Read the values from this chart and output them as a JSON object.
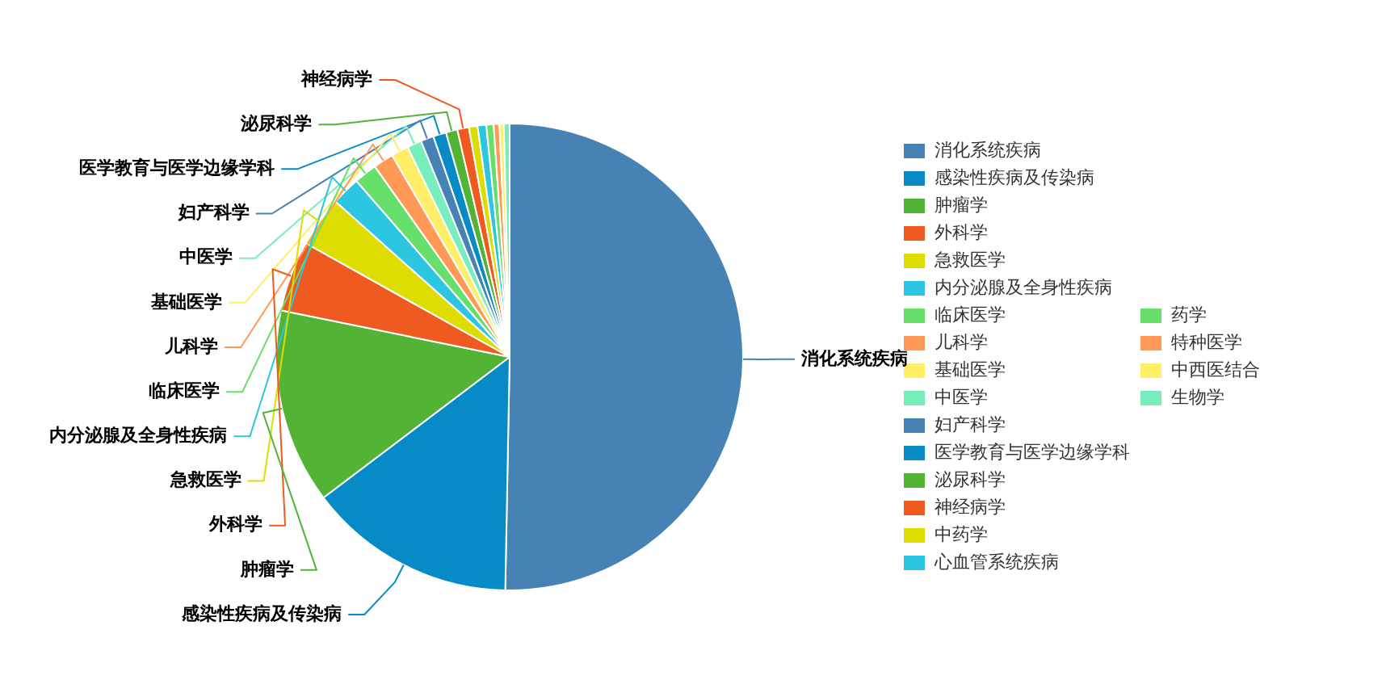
{
  "chart_data": {
    "type": "pie",
    "categories": [
      "消化系统疾病",
      "感染性疾病及传染病",
      "肿瘤学",
      "外科学",
      "急救医学",
      "内分泌腺及全身性疾病",
      "临床医学",
      "儿科学",
      "基础医学",
      "中医学",
      "妇产科学",
      "医学教育与医学边缘学科",
      "泌尿科学",
      "神经病学",
      "中药学",
      "心血管系统疾病",
      "药学",
      "特种医学",
      "中西医结合",
      "生物学"
    ],
    "values": [
      50.3,
      14.4,
      13.5,
      4.9,
      3.5,
      2.0,
      1.6,
      1.4,
      1.2,
      1.0,
      0.9,
      0.9,
      0.8,
      0.8,
      0.6,
      0.6,
      0.5,
      0.4,
      0.3,
      0.4
    ],
    "colors": [
      "#4682b4",
      "#078bc6",
      "#52b335",
      "#ee5a1f",
      "#dddd00",
      "#2dc6e0",
      "#66e06a",
      "#ff9955",
      "#ffee66",
      "#77eebb",
      "#4682b4",
      "#078bc6",
      "#52b335",
      "#ee5a1f",
      "#dddd00",
      "#2dc6e0",
      "#66e06a",
      "#ff9955",
      "#ffee66",
      "#77eebb"
    ],
    "legend": "right"
  }
}
